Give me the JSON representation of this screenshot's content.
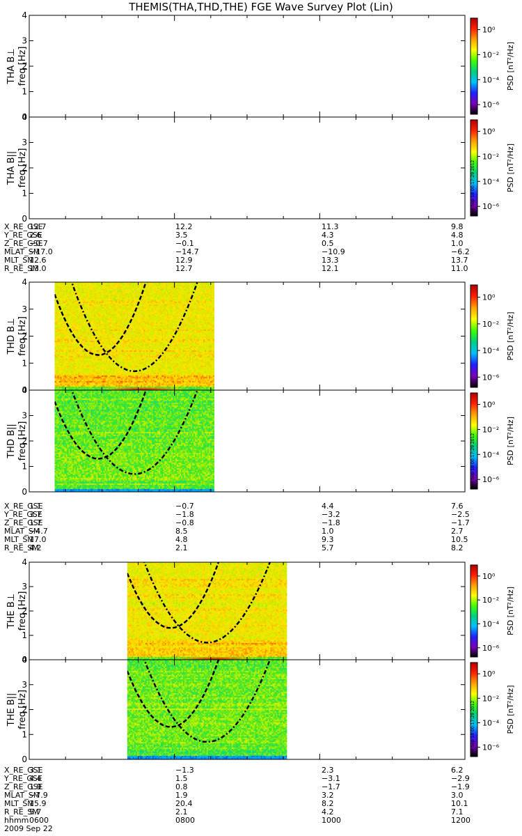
{
  "chart_data": {
    "type": "heatmap",
    "title": "THEMIS(THA,THD,THE) FGE Wave Survey Plot (Lin)",
    "x_tick_labels": [
      "0600",
      "0800",
      "1000",
      "1200"
    ],
    "x_unit_label": "hhmm",
    "date_label": "2009 Sep 22",
    "xlim_hours": [
      6,
      12
    ],
    "ylim_hz": [
      0,
      4
    ],
    "y_ticks": [
      "0",
      "1",
      "2",
      "3",
      "4"
    ],
    "colorbar": {
      "label": "PSD [nT²/Hz]",
      "scale": "log",
      "ticks": [
        "10⁰",
        "10⁻²",
        "10⁻⁴",
        "10⁻⁶"
      ],
      "colors": [
        "#000000",
        "#7a00b8",
        "#2020ff",
        "#00c0ff",
        "#00d080",
        "#40ff00",
        "#ffff00",
        "#ffa000",
        "#ff2000",
        "#b00000"
      ]
    },
    "version_stamp": "Sun Sep 18 00:17:29 2012",
    "panels": [
      {
        "probe": "THA",
        "label": "THA B⊥",
        "ylabel": "freq [Hz]",
        "component": "perp",
        "data_start_hr": null,
        "data_end_hr": null
      },
      {
        "probe": "THA",
        "label": "THA B||",
        "ylabel": "freq [Hz]",
        "component": "par",
        "data_start_hr": null,
        "data_end_hr": null
      },
      {
        "probe": "THD",
        "label": "THD B⊥",
        "ylabel": "freq [Hz]",
        "component": "perp",
        "data_start_hr": 6.35,
        "data_end_hr": 8.55
      },
      {
        "probe": "THD",
        "label": "THD B||",
        "ylabel": "freq [Hz]",
        "component": "par",
        "data_start_hr": 6.35,
        "data_end_hr": 8.55
      },
      {
        "probe": "THE",
        "label": "THE B⊥",
        "ylabel": "freq [Hz]",
        "component": "perp",
        "data_start_hr": 7.35,
        "data_end_hr": 9.55
      },
      {
        "probe": "THE",
        "label": "THE B||",
        "ylabel": "freq [Hz]",
        "component": "par",
        "data_start_hr": 7.35,
        "data_end_hr": 9.55
      }
    ],
    "ephemeris": [
      {
        "probe": "THA",
        "rows": [
          {
            "name": "X_RE_GSE",
            "values": [
              "12.7",
              "12.2",
              "11.3",
              "9.8"
            ]
          },
          {
            "name": "Y_RE_GSE",
            "values": [
              "2.6",
              "3.5",
              "4.3",
              "4.8"
            ]
          },
          {
            "name": "Z_RE_GSE",
            "values": [
              "−0.7",
              "−0.1",
              "0.5",
              "1.0"
            ]
          },
          {
            "name": "MLAT_SM",
            "values": [
              "−17.0",
              "−14.7",
              "−10.9",
              "−6.2"
            ]
          },
          {
            "name": "MLT_SM",
            "values": [
              "12.6",
              "12.9",
              "13.3",
              "13.7"
            ]
          },
          {
            "name": "R_RE_SM",
            "values": [
              "13.0",
              "12.7",
              "12.1",
              "11.0"
            ]
          }
        ]
      },
      {
        "probe": "THD",
        "rows": [
          {
            "name": "X_RE_GSE",
            "values": [
              "1.1",
              "−0.7",
              "4.4",
              "7.6"
            ]
          },
          {
            "name": "Y_RE_GSE",
            "values": [
              "3.7",
              "−1.8",
              "−3.2",
              "−2.5"
            ]
          },
          {
            "name": "Z_RE_GSE",
            "values": [
              "1.7",
              "−0.8",
              "−1.8",
              "−1.7"
            ]
          },
          {
            "name": "MLAT_SM",
            "values": [
              "−4.7",
              "8.5",
              "1.0",
              "2.7"
            ]
          },
          {
            "name": "MLT_SM",
            "values": [
              "17.0",
              "4.8",
              "9.3",
              "10.5"
            ]
          },
          {
            "name": "R_RE_SM",
            "values": [
              "4.2",
              "2.1",
              "5.7",
              "8.2"
            ]
          }
        ]
      },
      {
        "probe": "THE",
        "rows": [
          {
            "name": "X_RE_GSE",
            "values": [
              "3.1",
              "−1.3",
              "2.3",
              "6.2"
            ]
          },
          {
            "name": "Y_RE_GSE",
            "values": [
              "4.4",
              "1.5",
              "−3.1",
              "−2.9"
            ]
          },
          {
            "name": "Z_RE_GSE",
            "values": [
              "1.9",
              "0.8",
              "−1.7",
              "−1.9"
            ]
          },
          {
            "name": "MLAT_SM",
            "values": [
              "−7.9",
              "1.9",
              "3.2",
              "3.0"
            ]
          },
          {
            "name": "MLT_SM",
            "values": [
              "15.9",
              "20.4",
              "8.2",
              "10.1"
            ]
          },
          {
            "name": "R_RE_SM",
            "values": [
              "5.7",
              "2.1",
              "4.2",
              "7.1"
            ]
          }
        ]
      }
    ]
  }
}
